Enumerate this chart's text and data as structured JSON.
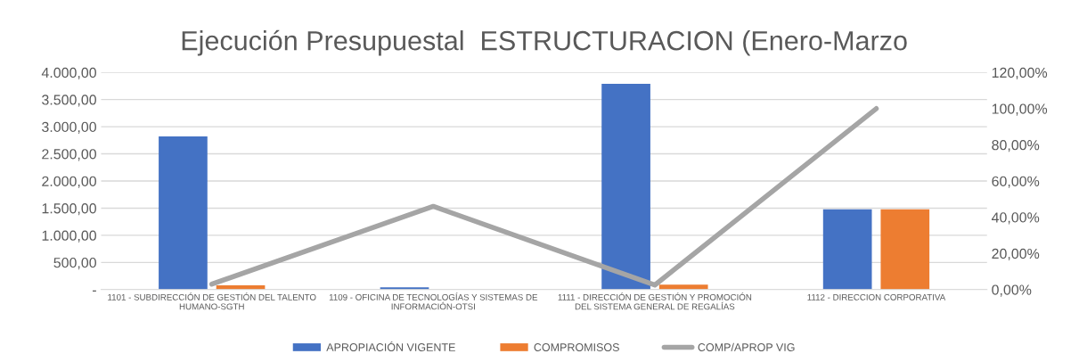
{
  "chart_data": {
    "type": "bar",
    "title": "Ejecución Presupuestal  ESTRUCTURACION (Enero-Marzo",
    "categories": [
      "1101 - SUBDIRECCIÓN DE GESTIÓN DEL TALENTO\nHUMANO-SGTH",
      "1109 - OFICINA DE TECNOLOGÍAS Y SISTEMAS DE\nINFORMACIÓN-OTSI",
      "1111 - DIRECCIÓN DE GESTIÓN Y PROMOCIÓN\nDEL SISTEMA GENERAL DE REGALÍAS",
      "1112 - DIRECCION CORPORATIVA"
    ],
    "series": [
      {
        "name": "APROPIACIÓN VIGENTE",
        "color": "#4472c4",
        "values": [
          2820,
          40,
          3790,
          1480
        ]
      },
      {
        "name": "COMPROMISOS",
        "color": "#ed7d31",
        "values": [
          80,
          0,
          90,
          1480
        ]
      },
      {
        "name": "COMP/APROP VIG",
        "color": "#a5a5a5",
        "type": "line",
        "axis": "y2",
        "values": [
          3,
          46,
          2.5,
          100
        ]
      }
    ],
    "ylim": [
      0,
      4000
    ],
    "yticks": [
      {
        "value": 0,
        "label": "-"
      },
      {
        "value": 500,
        "label": "500,00"
      },
      {
        "value": 1000,
        "label": "1.000,00"
      },
      {
        "value": 1500,
        "label": "1.500,00"
      },
      {
        "value": 2000,
        "label": "2.000,00"
      },
      {
        "value": 2500,
        "label": "2.500,00"
      },
      {
        "value": 3000,
        "label": "3.000,00"
      },
      {
        "value": 3500,
        "label": "3.500,00"
      },
      {
        "value": 4000,
        "label": "4.000,00"
      }
    ],
    "y2lim": [
      0,
      120
    ],
    "y2ticks": [
      {
        "value": 0,
        "label": "0,00%"
      },
      {
        "value": 20,
        "label": "20,00%"
      },
      {
        "value": 40,
        "label": "40,00%"
      },
      {
        "value": 60,
        "label": "60,00%"
      },
      {
        "value": 80,
        "label": "80,00%"
      },
      {
        "value": 100,
        "label": "100,00%"
      },
      {
        "value": 120,
        "label": "120,00%"
      }
    ],
    "grid": "y",
    "legend": "bottom",
    "marker": "none"
  }
}
